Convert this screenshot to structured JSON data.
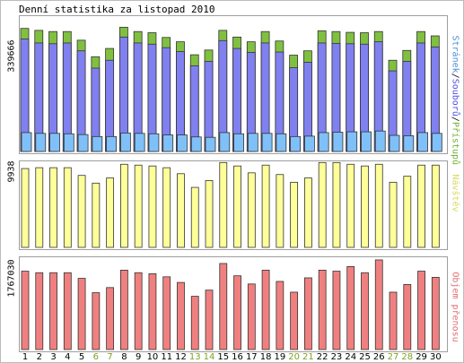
{
  "title": "Denní statistika za listopad 2010",
  "colors": {
    "pristupy": "#80c040",
    "soubory": "#8080f0",
    "stranek": "#80c0f8",
    "navstev": "#ffff99",
    "prenos": "#f08080",
    "weekend_label": "#80a020",
    "frame": "#9e9e9e"
  },
  "panels": {
    "top": {
      "ymax_label": "339666",
      "legend": {
        "stranek": "Stránek",
        "sep1": "/",
        "soubory": "Souborů",
        "sep2": "/",
        "pristupy": "Přístupů"
      }
    },
    "middle": {
      "ymax_label": "9938",
      "legend": "Návštěv"
    },
    "bottom": {
      "ymax_label": "1767030",
      "legend": "Objem přenosu"
    }
  },
  "weekend_days": [
    6,
    7,
    13,
    14,
    20,
    21,
    27,
    28
  ],
  "chart_data": {
    "type": "bar",
    "title": "Denní statistika za listopad 2010",
    "categories": [
      "1",
      "2",
      "3",
      "4",
      "5",
      "6",
      "7",
      "8",
      "9",
      "10",
      "11",
      "12",
      "13",
      "14",
      "15",
      "16",
      "17",
      "18",
      "19",
      "20",
      "21",
      "22",
      "23",
      "24",
      "25",
      "26",
      "27",
      "28",
      "29",
      "30"
    ],
    "panels": [
      {
        "ylim": [
          0,
          339666
        ],
        "series": [
          {
            "name": "Přístupů",
            "values": [
              313000,
              308000,
              305000,
              305000,
              283000,
              241000,
              262000,
              316000,
              305000,
              302000,
              290000,
              279000,
              246000,
              258000,
              308000,
              291000,
              279000,
              305000,
              281000,
              245000,
              256000,
              307000,
              305000,
              303000,
              302000,
              305000,
              232000,
              257000,
              305000,
              294000
            ]
          },
          {
            "name": "Souborů",
            "values": [
              286000,
              276000,
              274000,
              276000,
              256000,
              212000,
              232000,
              291000,
              276000,
              273000,
              264000,
              254000,
              218000,
              229000,
              282000,
              262000,
              252000,
              276000,
              253000,
              213000,
              227000,
              276000,
              275000,
              274000,
              273000,
              279000,
              205000,
              229000,
              276000,
              266000
            ]
          },
          {
            "name": "Stránek",
            "values": [
              48000,
              46000,
              46000,
              45000,
              43000,
              38000,
              38000,
              47000,
              46000,
              45000,
              42000,
              42000,
              37000,
              36000,
              48000,
              45000,
              46000,
              46000,
              45000,
              38000,
              39000,
              48000,
              49000,
              50000,
              50000,
              52000,
              41000,
              40000,
              48000,
              46000
            ]
          }
        ]
      },
      {
        "ylim": [
          0,
          9938
        ],
        "series": [
          {
            "name": "Návštěv",
            "values": [
              9200,
              9300,
              9300,
              9300,
              8400,
              7500,
              8100,
              9700,
              9600,
              9500,
              9300,
              8600,
              7000,
              7800,
              9900,
              9500,
              8700,
              9600,
              8500,
              7600,
              8100,
              9900,
              9900,
              9700,
              9500,
              9700,
              7600,
              8300,
              9600,
              9600
            ]
          }
        ]
      },
      {
        "ylim": [
          0,
          1767030
        ],
        "series": [
          {
            "name": "Objem přenosu",
            "values": [
              1530000,
              1500000,
              1500000,
              1500000,
              1390000,
              1110000,
              1210000,
              1550000,
              1500000,
              1480000,
              1420000,
              1310000,
              1040000,
              1160000,
              1680000,
              1440000,
              1280000,
              1550000,
              1330000,
              1120000,
              1400000,
              1550000,
              1530000,
              1620000,
              1500000,
              1750000,
              1120000,
              1270000,
              1530000,
              1410000
            ]
          }
        ]
      }
    ]
  }
}
